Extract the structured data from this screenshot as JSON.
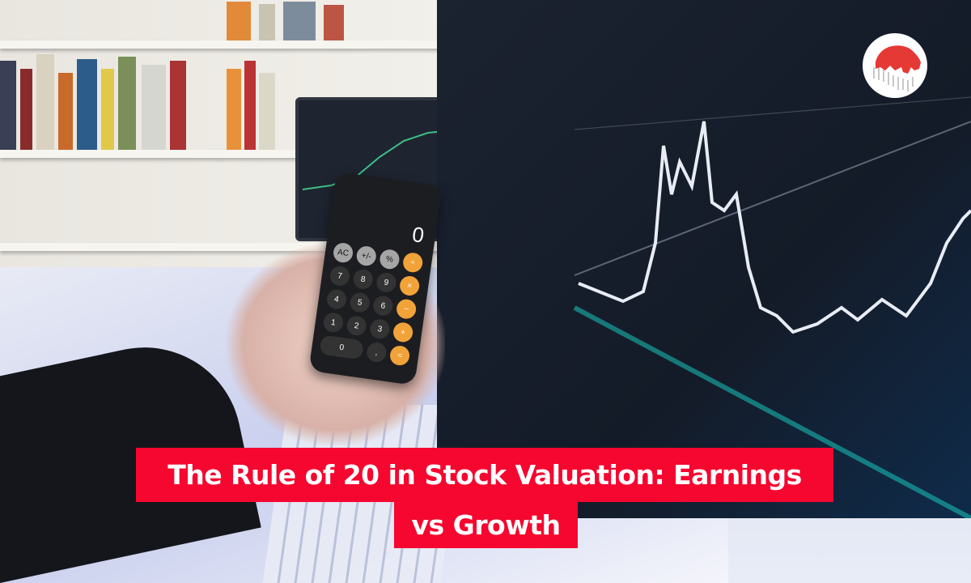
{
  "title": {
    "line1": "The Rule of 20 in Stock Valuation: Earnings",
    "line2": "vs Growth"
  },
  "colors": {
    "title_background": "#f5072f",
    "title_text": "#ffffff",
    "logo_bull": "#e53935"
  },
  "logo": {
    "icon": "red-bull-over-candlestick-logo"
  },
  "calculator": {
    "display": "0",
    "keys": [
      "AC",
      "+/-",
      "%",
      "÷",
      "7",
      "8",
      "9",
      "×",
      "4",
      "5",
      "6",
      "−",
      "1",
      "2",
      "3",
      "+",
      "0",
      ",",
      "="
    ]
  }
}
